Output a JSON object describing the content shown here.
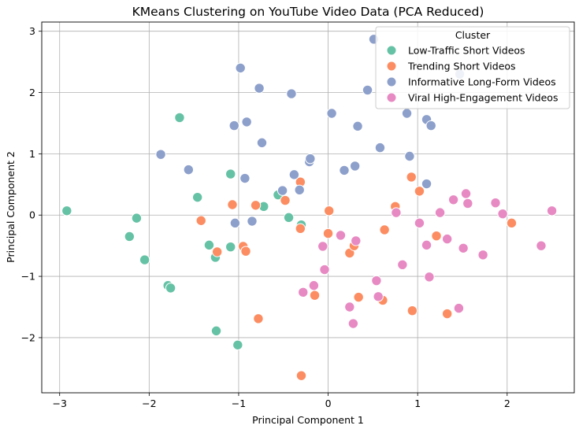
{
  "chart_data": {
    "type": "scatter",
    "title": "KMeans Clustering on YouTube Video Data (PCA Reduced)",
    "xlabel": "Principal Component 1",
    "ylabel": "Principal Component 2",
    "xlim": [
      -3.2,
      2.75
    ],
    "ylim": [
      -2.9,
      3.15
    ],
    "xticks": [
      -3,
      -2,
      -1,
      0,
      1,
      2
    ],
    "yticks": [
      -2,
      -1,
      0,
      1,
      2,
      3
    ],
    "grid": true,
    "legend": {
      "title": "Cluster",
      "placement": "top-right"
    },
    "series": [
      {
        "name": "Low-Traffic Short Videos",
        "color": "#66c2a5",
        "points": [
          [
            -2.92,
            0.07
          ],
          [
            -2.14,
            -0.05
          ],
          [
            -2.22,
            -0.35
          ],
          [
            -2.05,
            -0.73
          ],
          [
            -1.66,
            1.59
          ],
          [
            -1.46,
            0.29
          ],
          [
            -1.33,
            -0.49
          ],
          [
            -1.26,
            -0.69
          ],
          [
            -1.09,
            -0.52
          ],
          [
            -1.09,
            0.67
          ],
          [
            -1.79,
            -1.15
          ],
          [
            -1.76,
            -1.19
          ],
          [
            -1.25,
            -1.89
          ],
          [
            -1.01,
            -2.12
          ],
          [
            -0.72,
            0.14
          ],
          [
            -0.56,
            0.33
          ],
          [
            -0.44,
            -0.04
          ],
          [
            -0.3,
            -0.16
          ]
        ]
      },
      {
        "name": "Trending Short Videos",
        "color": "#fc8d62",
        "points": [
          [
            -1.42,
            -0.09
          ],
          [
            -1.24,
            -0.6
          ],
          [
            -1.07,
            0.17
          ],
          [
            -0.95,
            -0.51
          ],
          [
            -0.92,
            -0.59
          ],
          [
            -0.81,
            0.16
          ],
          [
            -0.78,
            -1.69
          ],
          [
            -0.48,
            0.24
          ],
          [
            -0.31,
            0.54
          ],
          [
            -0.31,
            -0.22
          ],
          [
            -0.3,
            -2.62
          ],
          [
            -0.15,
            -1.31
          ],
          [
            0.0,
            -0.3
          ],
          [
            0.01,
            0.07
          ],
          [
            0.24,
            -0.62
          ],
          [
            0.29,
            -0.5
          ],
          [
            0.34,
            -1.34
          ],
          [
            0.61,
            -1.39
          ],
          [
            0.63,
            -0.24
          ],
          [
            0.75,
            0.14
          ],
          [
            0.93,
            0.62
          ],
          [
            0.94,
            -1.56
          ],
          [
            1.02,
            0.39
          ],
          [
            1.21,
            -0.34
          ],
          [
            1.33,
            -1.61
          ],
          [
            2.05,
            -0.13
          ]
        ]
      },
      {
        "name": "Informative Long-Form Videos",
        "color": "#8da0cb",
        "points": [
          [
            -1.87,
            0.99
          ],
          [
            -1.56,
            0.74
          ],
          [
            -1.05,
            1.46
          ],
          [
            -1.04,
            -0.13
          ],
          [
            -0.98,
            2.4
          ],
          [
            -0.93,
            0.6
          ],
          [
            -0.91,
            1.52
          ],
          [
            -0.85,
            -0.1
          ],
          [
            -0.77,
            2.07
          ],
          [
            -0.74,
            1.18
          ],
          [
            -0.51,
            0.4
          ],
          [
            -0.41,
            1.98
          ],
          [
            -0.38,
            0.66
          ],
          [
            -0.32,
            0.41
          ],
          [
            -0.21,
            0.87
          ],
          [
            -0.2,
            0.92
          ],
          [
            0.04,
            1.66
          ],
          [
            0.18,
            0.73
          ],
          [
            0.3,
            0.8
          ],
          [
            0.33,
            1.45
          ],
          [
            0.44,
            2.04
          ],
          [
            0.51,
            2.87
          ],
          [
            0.58,
            1.1
          ],
          [
            0.88,
            1.66
          ],
          [
            0.91,
            0.96
          ],
          [
            1.1,
            1.56
          ],
          [
            1.1,
            0.51
          ],
          [
            1.15,
            1.46
          ],
          [
            1.47,
            2.3
          ]
        ]
      },
      {
        "name": "Viral High-Engagement Videos",
        "color": "#e78ac3",
        "points": [
          [
            -0.28,
            -1.26
          ],
          [
            -0.16,
            -1.15
          ],
          [
            -0.06,
            -0.51
          ],
          [
            -0.04,
            -0.89
          ],
          [
            0.14,
            -0.33
          ],
          [
            0.24,
            -1.5
          ],
          [
            0.28,
            -1.77
          ],
          [
            0.31,
            -0.42
          ],
          [
            0.54,
            -1.07
          ],
          [
            0.56,
            -1.33
          ],
          [
            0.76,
            0.04
          ],
          [
            0.83,
            -0.81
          ],
          [
            1.02,
            -0.13
          ],
          [
            1.1,
            -0.49
          ],
          [
            1.13,
            -1.01
          ],
          [
            1.25,
            0.04
          ],
          [
            1.33,
            -0.39
          ],
          [
            1.4,
            0.25
          ],
          [
            1.46,
            -1.52
          ],
          [
            1.51,
            -0.54
          ],
          [
            1.54,
            0.35
          ],
          [
            1.56,
            0.19
          ],
          [
            1.73,
            -0.65
          ],
          [
            1.87,
            0.2
          ],
          [
            1.95,
            0.02
          ],
          [
            2.38,
            -0.5
          ],
          [
            2.5,
            0.07
          ]
        ]
      }
    ]
  }
}
